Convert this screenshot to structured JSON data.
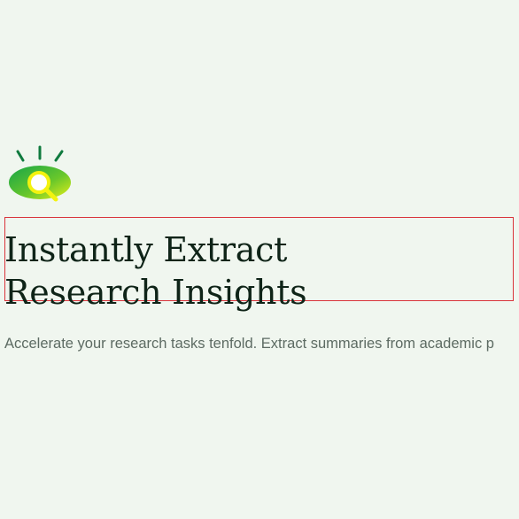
{
  "hero": {
    "logo_icon": "eye-magnifier-icon",
    "headline_line1": "Instantly Extract",
    "headline_line2": "Research Insights",
    "subtitle": "Accelerate your research tasks tenfold. Extract summaries from academic p"
  },
  "colors": {
    "background": "#f0f6ef",
    "headline": "#0f2418",
    "subtitle": "#5d6b63",
    "logo_green": "#19a74a",
    "logo_yellow": "#f3f20f",
    "highlight_border": "#d9343b"
  }
}
